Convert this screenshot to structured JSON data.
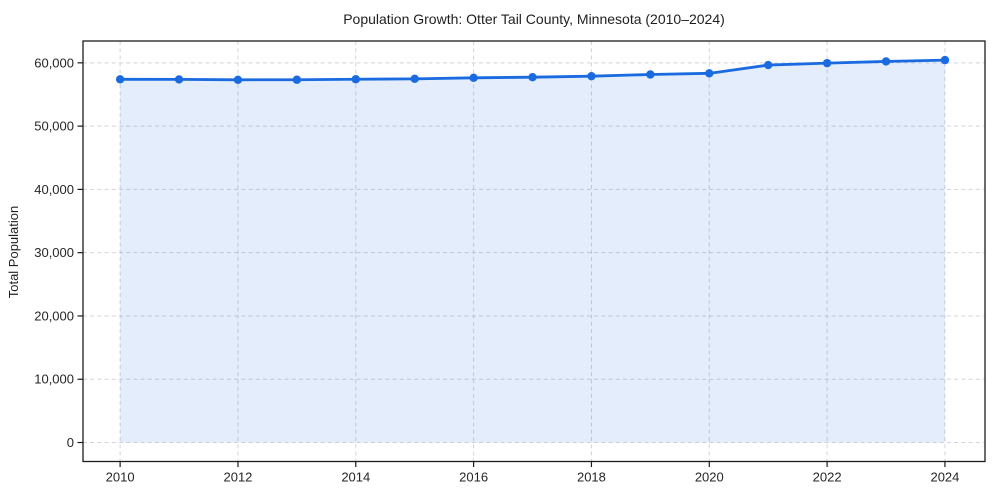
{
  "chart_data": {
    "type": "line",
    "title": "Population Growth: Otter Tail County, Minnesota (2010–2024)",
    "xlabel": "",
    "ylabel": "Total Population",
    "series": [
      {
        "name": "Total Population",
        "x": [
          2010,
          2011,
          2012,
          2013,
          2014,
          2015,
          2016,
          2017,
          2018,
          2019,
          2020,
          2021,
          2022,
          2023,
          2024
        ],
        "y": [
          57400,
          57380,
          57320,
          57330,
          57410,
          57470,
          57630,
          57730,
          57890,
          58160,
          58340,
          59650,
          59950,
          60220,
          60430
        ]
      }
    ],
    "xticks": [
      2010,
      2012,
      2014,
      2016,
      2018,
      2020,
      2022,
      2024
    ],
    "yticks": [
      0,
      10000,
      20000,
      30000,
      40000,
      50000,
      60000
    ],
    "xlim": [
      2009.37,
      2024.68
    ],
    "ylim": [
      -3000,
      63450
    ],
    "grid": true,
    "grid_style": "dashed",
    "legend": "none",
    "area_fill_baseline": 0,
    "colors": {
      "line": "#1a6ae0",
      "marker": "#1a6ae0",
      "area_fill": "rgba(26,106,224,0.12)",
      "gridline": "#c9cdd4",
      "axis_border": "#1c1c1c",
      "text": "#262626",
      "background": "#ffffff"
    }
  }
}
